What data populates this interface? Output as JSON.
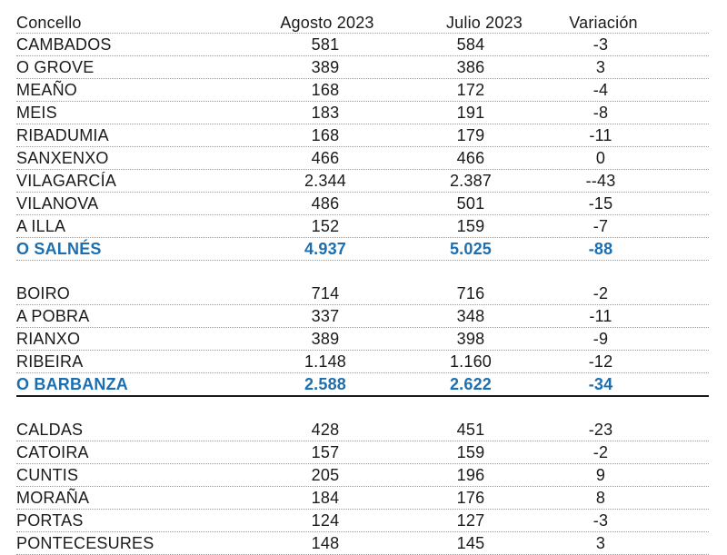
{
  "headers": {
    "concello": "Concello",
    "august": "Agosto 2023",
    "july": "Julio 2023",
    "variation": "Variación"
  },
  "groups": [
    {
      "rows": [
        {
          "name": "CAMBADOS",
          "aug": "581",
          "jul": "584",
          "var": "-3"
        },
        {
          "name": "O GROVE",
          "aug": "389",
          "jul": "386",
          "var": "3"
        },
        {
          "name": "MEAÑO",
          "aug": "168",
          "jul": "172",
          "var": "-4"
        },
        {
          "name": "MEIS",
          "aug": "183",
          "jul": "191",
          "var": "-8"
        },
        {
          "name": "RIBADUMIA",
          "aug": "168",
          "jul": "179",
          "var": "-11"
        },
        {
          "name": "SANXENXO",
          "aug": "466",
          "jul": "466",
          "var": "0"
        },
        {
          "name": "VILAGARCÍA",
          "aug": "2.344",
          "jul": "2.387",
          "var": "--43"
        },
        {
          "name": "VILANOVA",
          "aug": "486",
          "jul": "501",
          "var": "-15"
        },
        {
          "name": "A ILLA",
          "aug": "152",
          "jul": "159",
          "var": "-7"
        }
      ],
      "total": {
        "name": "O SALNÉS",
        "aug": "4.937",
        "jul": "5.025",
        "var": "-88"
      }
    },
    {
      "rows": [
        {
          "name": "BOIRO",
          "aug": "714",
          "jul": "716",
          "var": "-2"
        },
        {
          "name": "A POBRA",
          "aug": "337",
          "jul": "348",
          "var": "-11"
        },
        {
          "name": "RIANXO",
          "aug": "389",
          "jul": "398",
          "var": "-9"
        },
        {
          "name": "RIBEIRA",
          "aug": "1.148",
          "jul": "1.160",
          "var": "-12"
        }
      ],
      "total": {
        "name": "O BARBANZA",
        "aug": "2.588",
        "jul": "2.622",
        "var": "-34"
      }
    },
    {
      "rows": [
        {
          "name": "CALDAS",
          "aug": "428",
          "jul": "451",
          "var": "-23"
        },
        {
          "name": "CATOIRA",
          "aug": "157",
          "jul": "159",
          "var": "-2"
        },
        {
          "name": "CUNTIS",
          "aug": "205",
          "jul": "196",
          "var": "9"
        },
        {
          "name": "MORAÑA",
          "aug": "184",
          "jul": "176",
          "var": "8"
        },
        {
          "name": "PORTAS",
          "aug": "124",
          "jul": "127",
          "var": "-3"
        },
        {
          "name": "PONTECESURES",
          "aug": "148",
          "jul": "145",
          "var": "3"
        }
      ]
    }
  ]
}
